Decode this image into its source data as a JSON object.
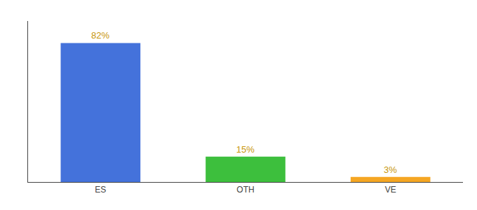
{
  "chart_data": {
    "type": "bar",
    "categories": [
      "ES",
      "OTH",
      "VE"
    ],
    "values": [
      82,
      15,
      3
    ],
    "value_labels": [
      "82%",
      "15%",
      "3%"
    ],
    "colors": [
      "#4472db",
      "#3dbf3d",
      "#f5a623"
    ],
    "ylim": [
      0,
      95
    ],
    "grid": false,
    "data_labels": true,
    "tick_labels": "x"
  }
}
